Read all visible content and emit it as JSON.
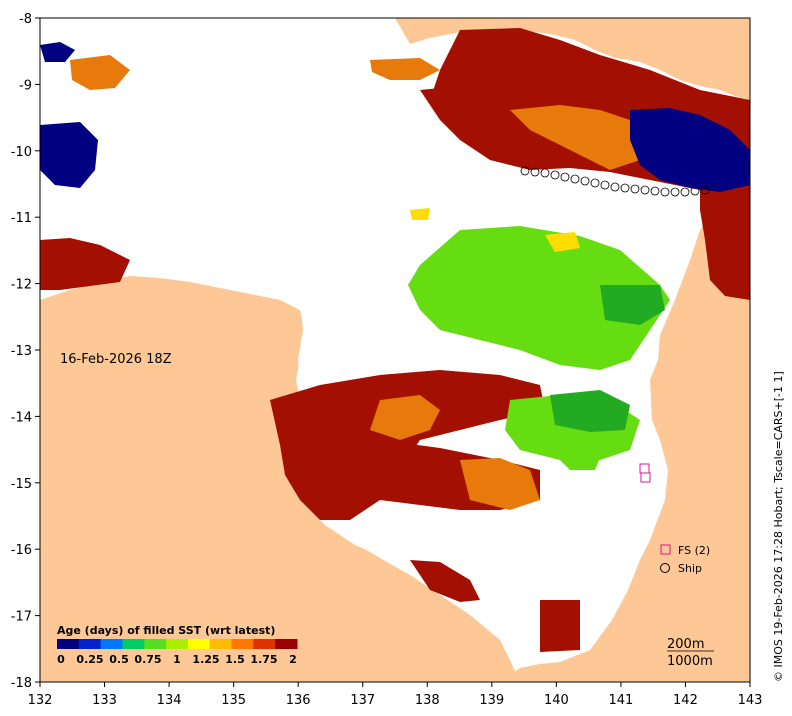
{
  "map": {
    "date_label": "16-Feb-2026 18Z",
    "credit": "© IMOS 19-Feb-2026 17:28 Hobart; Tscale=CARS+[-1 1]",
    "x_ticks": [
      "132",
      "133",
      "134",
      "135",
      "136",
      "137",
      "138",
      "139",
      "140",
      "141",
      "142",
      "143"
    ],
    "y_ticks": [
      "-8",
      "-9",
      "-10",
      "-11",
      "-12",
      "-13",
      "-14",
      "-15",
      "-16",
      "-17",
      "-18"
    ],
    "lon_range": [
      132,
      143
    ],
    "lat_range": [
      -18,
      -8
    ],
    "colorbar": {
      "title": "Age (days) of filled SST (wrt latest)",
      "ticks": [
        "0",
        "0.25",
        "0.5",
        "0.75",
        "1",
        "1.25",
        "1.5",
        "1.75",
        "2"
      ],
      "colors": [
        "#00007f",
        "#0022cc",
        "#0077ff",
        "#00cc66",
        "#55dd22",
        "#aaee00",
        "#ffff00",
        "#ffbb00",
        "#ff7700",
        "#dd3300",
        "#990000"
      ]
    },
    "legend": {
      "fs_label": "FS (2)",
      "ship_label": "Ship"
    },
    "depth_labels": [
      "200m",
      "1000m"
    ],
    "colors": {
      "land": "#fdc896",
      "sea": "#ffffff",
      "age_old": "#a30f00",
      "age_orange": "#e87a0c",
      "age_green": "#66dd11",
      "age_blue": "#000080",
      "fs_marker": "#e0109f"
    }
  }
}
